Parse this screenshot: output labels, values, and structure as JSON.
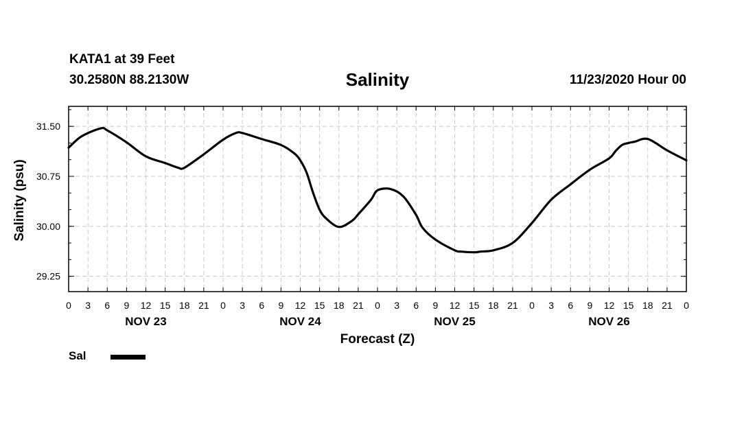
{
  "header": {
    "station": "KATA1 at 39 Feet",
    "coordinates": "30.2580N 88.2130W",
    "title": "Salinity",
    "issued": "11/23/2020 Hour 00"
  },
  "legend": {
    "label": "Sal",
    "color": "#000000"
  },
  "chart_data": {
    "type": "line",
    "title": "Salinity",
    "xlabel": "Forecast (Z)",
    "ylabel": "Salinity (psu)",
    "x_unit": "hours from 11/23/2020 00Z",
    "xlim": [
      0,
      96
    ],
    "ylim": [
      29.02,
      31.8
    ],
    "y_ticks": [
      29.25,
      30.0,
      30.75,
      31.5
    ],
    "y_tick_labels": [
      "29.25",
      "30.00",
      "30.75",
      "31.50"
    ],
    "x_tick_hours": [
      0,
      3,
      6,
      9,
      12,
      15,
      18,
      21,
      24,
      27,
      30,
      33,
      36,
      39,
      42,
      45,
      48,
      51,
      54,
      57,
      60,
      63,
      66,
      69,
      72,
      75,
      78,
      81,
      84,
      87,
      90,
      93,
      96
    ],
    "x_tick_labels": [
      "0",
      "3",
      "6",
      "9",
      "12",
      "15",
      "18",
      "21",
      "0",
      "3",
      "6",
      "9",
      "12",
      "15",
      "18",
      "21",
      "0",
      "3",
      "6",
      "9",
      "12",
      "15",
      "18",
      "21",
      "0",
      "3",
      "6",
      "9",
      "12",
      "15",
      "18",
      "21",
      "0"
    ],
    "day_labels": [
      {
        "label": "NOV 23",
        "hour": 12
      },
      {
        "label": "NOV 24",
        "hour": 36
      },
      {
        "label": "NOV 25",
        "hour": 60
      },
      {
        "label": "NOV 26",
        "hour": 84
      }
    ],
    "grid": true,
    "legend_position": "bottom-left",
    "series": [
      {
        "name": "Sal",
        "color": "#000000",
        "x": [
          0,
          2,
          5,
          6,
          9,
          12,
          15,
          17,
          18,
          21,
          24,
          26,
          27,
          30,
          33,
          35,
          36,
          37,
          38,
          39,
          40,
          42,
          44,
          45,
          47,
          48,
          50,
          52,
          54,
          55,
          57,
          60,
          61,
          63,
          64,
          66,
          69,
          72,
          75,
          78,
          81,
          84,
          85,
          86,
          87,
          88,
          90,
          93,
          96
        ],
        "y": [
          31.18,
          31.35,
          31.47,
          31.44,
          31.26,
          31.05,
          30.95,
          30.88,
          30.88,
          31.08,
          31.3,
          31.4,
          31.4,
          31.31,
          31.22,
          31.1,
          30.99,
          30.8,
          30.5,
          30.25,
          30.12,
          29.99,
          30.08,
          30.18,
          30.4,
          30.54,
          30.56,
          30.45,
          30.17,
          29.98,
          29.8,
          29.64,
          29.62,
          29.61,
          29.62,
          29.64,
          29.75,
          30.05,
          30.4,
          30.63,
          30.85,
          31.02,
          31.13,
          31.22,
          31.25,
          31.27,
          31.31,
          31.14,
          30.99
        ]
      }
    ]
  }
}
